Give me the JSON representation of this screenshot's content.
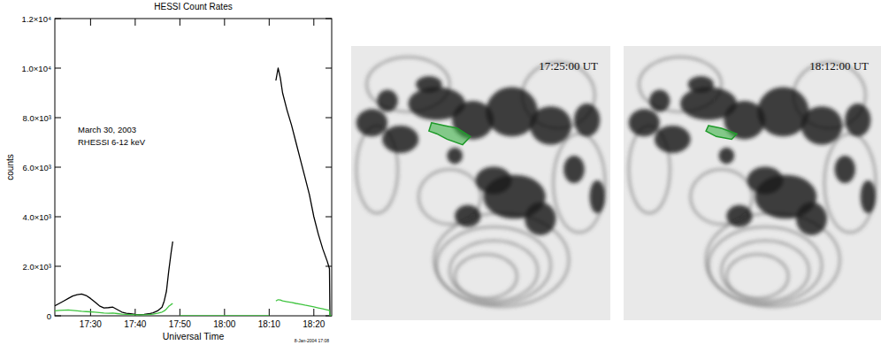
{
  "chart_data": {
    "type": "line",
    "title": "HESSI Count Rates",
    "x_label": "Universal Time",
    "y_label": "counts",
    "annotations": [
      "March 30, 2003",
      "RHESSI 6-12 keV",
      "8-Jan-2004 17:08"
    ],
    "x": [
      22,
      23,
      24,
      25,
      26,
      27,
      28,
      29,
      30,
      31,
      32,
      33,
      34,
      35,
      36,
      37,
      38,
      39,
      40,
      41,
      42,
      43,
      44,
      45,
      46,
      46.5,
      47,
      47.5,
      48,
      48.4,
      49,
      50,
      55,
      60,
      65,
      70,
      71,
      71.5,
      72,
      72.5,
      73,
      74,
      75,
      76,
      77,
      78,
      79,
      80,
      81,
      82,
      83,
      83.5,
      83.6,
      84
    ],
    "series": [
      {
        "color": "#000000",
        "values": [
          400,
          500,
          600,
          700,
          800,
          850,
          880,
          820,
          700,
          550,
          400,
          320,
          330,
          350,
          250,
          150,
          100,
          80,
          60,
          50,
          60,
          80,
          120,
          200,
          350,
          600,
          1000,
          1800,
          2500,
          3000,
          null,
          null,
          null,
          null,
          null,
          null,
          null,
          9500,
          10000,
          9600,
          9000,
          8300,
          7700,
          7000,
          6300,
          5600,
          4900,
          4000,
          3300,
          2700,
          2200,
          1900,
          0,
          0
        ]
      },
      {
        "color": "#3fc43f",
        "values": [
          200,
          220,
          230,
          240,
          220,
          200,
          180,
          170,
          160,
          150,
          130,
          110,
          100,
          110,
          90,
          70,
          60,
          50,
          40,
          40,
          40,
          50,
          70,
          100,
          150,
          200,
          280,
          380,
          450,
          500,
          null,
          0,
          0,
          0,
          0,
          0,
          null,
          600,
          650,
          640,
          600,
          570,
          540,
          500,
          470,
          430,
          400,
          360,
          320,
          280,
          240,
          220,
          0,
          0
        ]
      }
    ],
    "xlim": [
      22,
      84
    ],
    "xticks": [
      {
        "value": 30,
        "label": "17:30"
      },
      {
        "value": 40,
        "label": "17:40"
      },
      {
        "value": 50,
        "label": "17:50"
      },
      {
        "value": 60,
        "label": "18:00"
      },
      {
        "value": 70,
        "label": "18:10"
      },
      {
        "value": 80,
        "label": "18:20"
      }
    ],
    "ylim": [
      0,
      12000
    ],
    "yticks": [
      0,
      {
        "value": 2000,
        "label": "2.0×10³"
      },
      {
        "value": 4000,
        "label": "4.0×10³"
      },
      {
        "value": 6000,
        "label": "6.0×10³"
      },
      {
        "value": 8000,
        "label": "8.0×10³"
      },
      {
        "value": 10000,
        "label": "1.0×10⁴"
      },
      {
        "value": 12000,
        "label": "1.2×10⁴"
      }
    ],
    "grid": false
  },
  "images": [
    {
      "label": "17:25:00 UT"
    },
    {
      "label": "18:12:00 UT"
    }
  ]
}
